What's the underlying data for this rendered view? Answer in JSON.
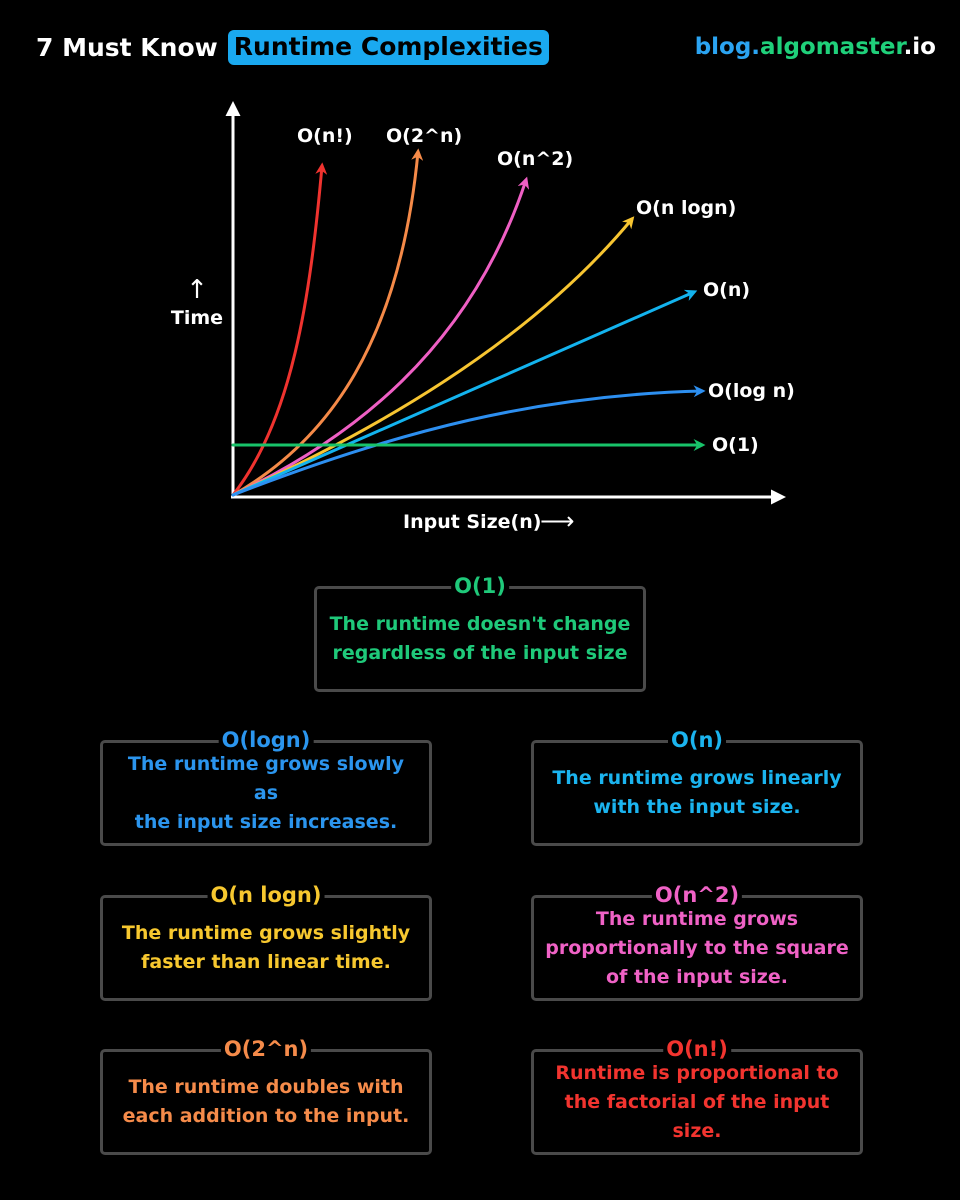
{
  "header": {
    "title_prefix": "7 Must Know",
    "title_highlight": "Runtime Complexities",
    "brand_part1": "blog.",
    "brand_part2": "algomaster",
    "brand_part3": ".io"
  },
  "chart_data": {
    "type": "line",
    "ylabel": "Time",
    "y_arrow": "↑",
    "xlabel": "Input Size(n)",
    "x_arrow": "⟶",
    "series": [
      {
        "name": "O(n!)",
        "color": "#f0332f"
      },
      {
        "name": "O(2^n)",
        "color": "#f58a48"
      },
      {
        "name": "O(n^2)",
        "color": "#ef5fc4"
      },
      {
        "name": "O(n logn)",
        "color": "#f7c531"
      },
      {
        "name": "O(n)",
        "color": "#13b3ee"
      },
      {
        "name": "O(log n)",
        "color": "#2d8ff0"
      },
      {
        "name": "O(1)",
        "color": "#18c36a"
      }
    ]
  },
  "cards": {
    "o1": {
      "title": "O(1)",
      "line1": "The runtime doesn't change",
      "line2": "regardless of the input size",
      "color": "#1fc97a"
    },
    "ologn": {
      "title": "O(logn)",
      "line1": "The runtime grows slowly as",
      "line2": "the input size increases.",
      "color": "#2b95ee"
    },
    "on": {
      "title": "O(n)",
      "line1": "The runtime grows linearly",
      "line2": "with the input size.",
      "color": "#1bb4ef"
    },
    "onlogn": {
      "title": "O(n logn)",
      "line1": "The runtime grows slightly",
      "line2": "faster than linear time.",
      "color": "#f7c82f"
    },
    "on2": {
      "title": "O(n^2)",
      "line1": "The runtime grows",
      "line2": "proportionally to the square",
      "line3": "of the input size.",
      "color": "#f062c6"
    },
    "o2n": {
      "title": "O(2^n)",
      "line1": "The runtime doubles with",
      "line2": "each addition to the input.",
      "color": "#f58b4a"
    },
    "onf": {
      "title": "O(n!)",
      "line1": "Runtime is proportional to",
      "line2": "the factorial of the input size.",
      "color": "#f2342f"
    }
  }
}
